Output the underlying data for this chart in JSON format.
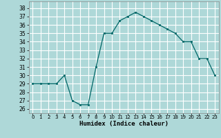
{
  "x": [
    0,
    1,
    2,
    3,
    4,
    5,
    6,
    7,
    8,
    9,
    10,
    11,
    12,
    13,
    14,
    15,
    16,
    17,
    18,
    19,
    20,
    21,
    22,
    23
  ],
  "y": [
    29,
    29,
    29,
    29,
    30,
    27,
    26.5,
    26.5,
    31,
    35,
    35,
    36.5,
    37,
    37.5,
    37,
    36.5,
    36,
    35.5,
    35,
    34,
    34,
    32,
    32,
    30
  ],
  "line_color": "#006666",
  "marker_color": "#006666",
  "bg_color": "#aed8d8",
  "grid_color": "#ffffff",
  "xlabel": "Humidex (Indice chaleur)",
  "ylabel_ticks": [
    26,
    27,
    28,
    29,
    30,
    31,
    32,
    33,
    34,
    35,
    36,
    37,
    38
  ],
  "ylim": [
    25.5,
    38.8
  ],
  "xlim": [
    -0.5,
    23.5
  ]
}
